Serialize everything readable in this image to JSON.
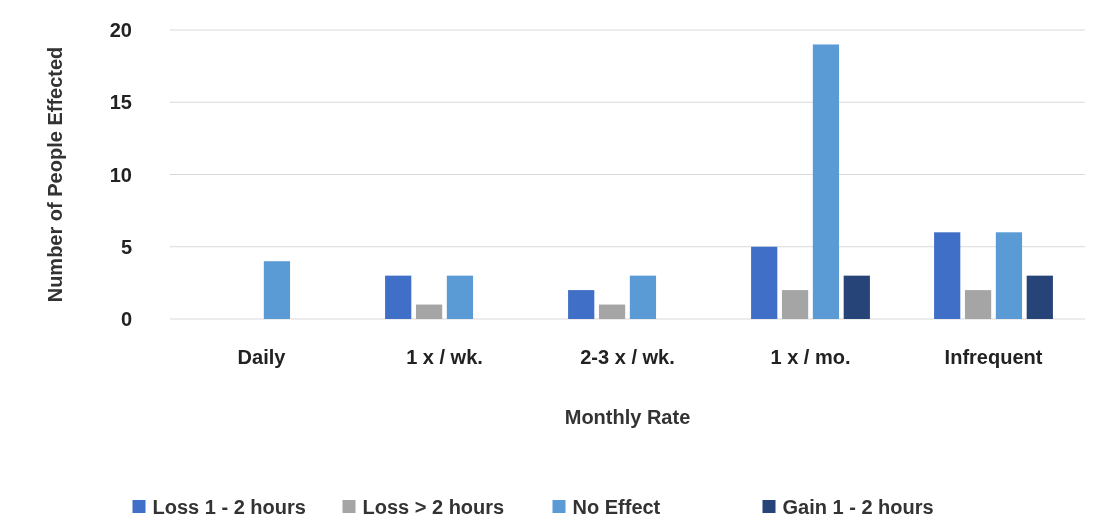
{
  "chart_data": {
    "type": "bar",
    "xlabel": "Monthly Rate",
    "ylabel": "Number of People Effected",
    "categories": [
      "Daily",
      "1 x / wk.",
      "2-3 x / wk.",
      "1 x / mo.",
      "Infrequent"
    ],
    "series": [
      {
        "name": "Loss 1 - 2 hours",
        "color": "#3f6fc6",
        "values": [
          0,
          3,
          2,
          5,
          6
        ]
      },
      {
        "name": "Loss > 2 hours",
        "color": "#a5a5a5",
        "values": [
          0,
          1,
          1,
          2,
          2
        ]
      },
      {
        "name": "No Effect",
        "color": "#5b9bd5",
        "values": [
          4,
          3,
          3,
          19,
          6
        ]
      },
      {
        "name": "Gain 1 - 2 hours",
        "color": "#264478",
        "values": [
          0,
          0,
          0,
          3,
          3
        ]
      }
    ],
    "ylim": [
      0,
      20
    ],
    "yticks": [
      0,
      5,
      10,
      15,
      20
    ],
    "grid": "y",
    "legend": "bottom"
  }
}
